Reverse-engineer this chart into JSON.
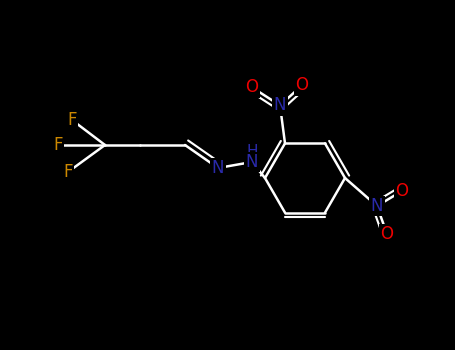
{
  "background_color": "#000000",
  "bond_color": "#ffffff",
  "nitrogen_color": "#2a2aaa",
  "oxygen_color": "#ee0000",
  "fluorine_color": "#cc8800",
  "figsize": [
    4.55,
    3.5
  ],
  "dpi": 100,
  "xlim": [
    0.0,
    4.55
  ],
  "ylim": [
    0.0,
    3.5
  ]
}
